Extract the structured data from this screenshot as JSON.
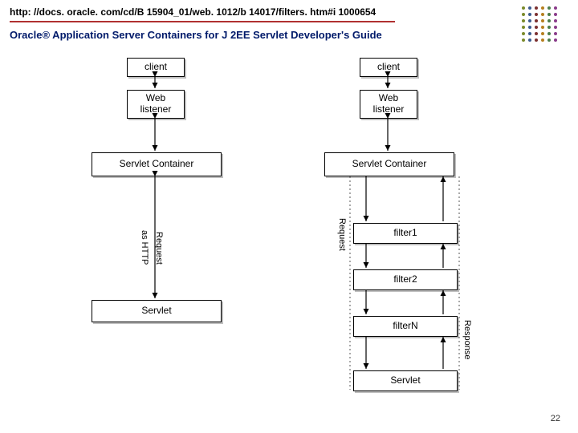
{
  "header": {
    "url": "http: //docs. oracle. com/cd/B 15904_01/web. 1012/b 14017/filters. htm#i 1000654",
    "title": "Oracle® Application Server Containers for J 2EE Servlet Developer's Guide"
  },
  "page_number": "22",
  "dot_colors": [
    "#7a8a2a",
    "#3b5b8f",
    "#7b2f2f",
    "#b67f1f",
    "#4a7d4a",
    "#8a3b8a"
  ],
  "diagram": {
    "left": {
      "client": "client",
      "web_listener": "Web\nlistener",
      "servlet_container": "Servlet Container",
      "servlet": "Servlet"
    },
    "right": {
      "client": "client",
      "web_listener": "Web\nlistener",
      "servlet_container": "Servlet Container",
      "filter1": "filter1",
      "filter2": "filter2",
      "filterN": "filterN",
      "servlet": "Servlet"
    },
    "labels": {
      "as_http": "as HTTP",
      "request": "Request",
      "response": "Response"
    },
    "style": {
      "box_border": "#000000",
      "box_bg": "#ffffff",
      "arrow_color": "#000000",
      "dotted_color": "#555555",
      "line_width": 1.2,
      "font_size": 12
    }
  }
}
